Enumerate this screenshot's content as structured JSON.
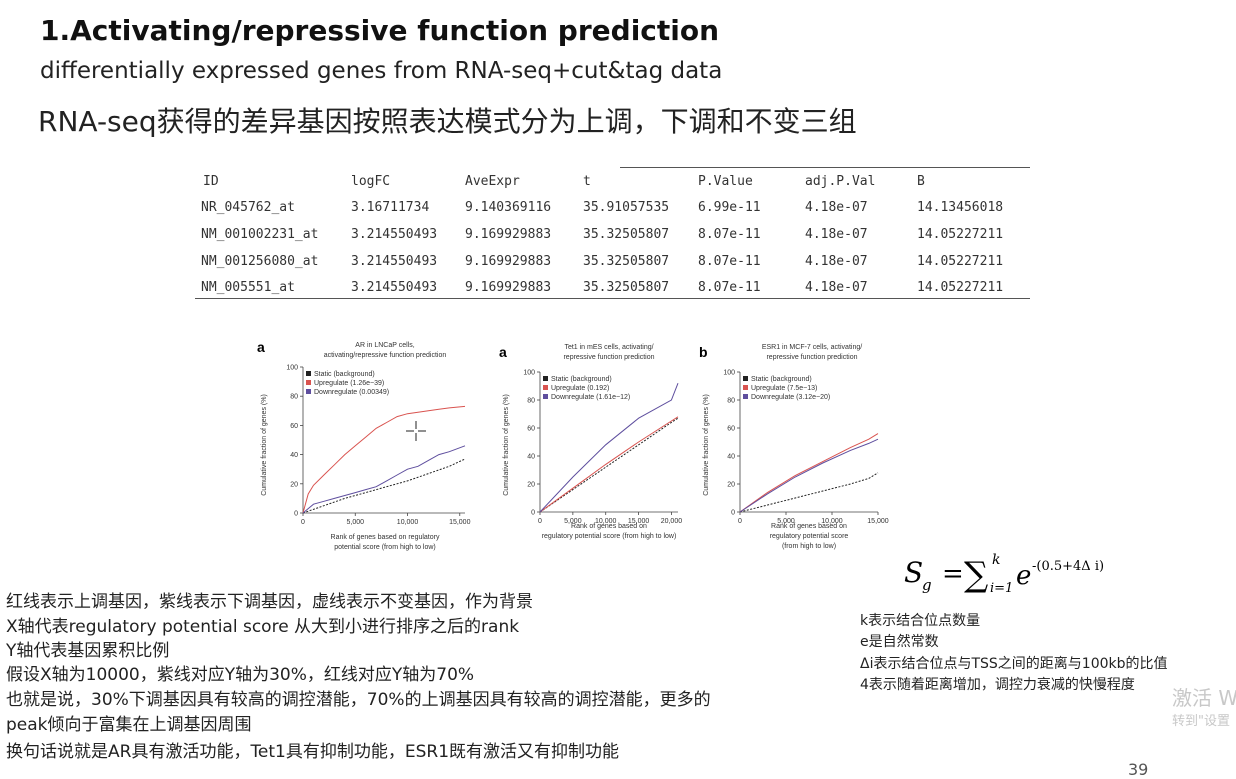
{
  "slide": {
    "title": "1.Activating/repressive function prediction",
    "subtitle": "differentially expressed genes from RNA-seq+cut&tag data",
    "subtitle_cn": "RNA-seq获得的差异基因按照表达模式分为上调，下调和不变三组",
    "page_number": "39"
  },
  "table": {
    "headers": [
      "ID",
      "logFC",
      "AveExpr",
      "t",
      "P.Value",
      "adj.P.Val",
      "B"
    ],
    "rows": [
      [
        "NR_045762_at",
        "3.16711734",
        "9.140369116",
        "35.91057535",
        "6.99e-11",
        "4.18e-07",
        "14.13456018"
      ],
      [
        "NM_001002231_at",
        "3.214550493",
        "9.169929883",
        "35.32505807",
        "8.07e-11",
        "4.18e-07",
        "14.05227211"
      ],
      [
        "NM_001256080_at",
        "3.214550493",
        "9.169929883",
        "35.32505807",
        "8.07e-11",
        "4.18e-07",
        "14.05227211"
      ],
      [
        "NM_005551_at",
        "3.214550493",
        "9.169929883",
        "35.32505807",
        "8.07e-11",
        "4.18e-07",
        "14.05227211"
      ]
    ]
  },
  "charts": [
    {
      "panel_letter": "a",
      "title_line1": "AR in LNCaP cells,",
      "title_line2": "activating/repressive function prediction",
      "ylabel": "Cumulative fraction of genes (%)",
      "xlabel_line1": "Rank of genes based on regulatory",
      "xlabel_line2": "potential score (from high to low)",
      "yticks": [
        "0",
        "20",
        "40",
        "60",
        "80",
        "100"
      ],
      "xticks": [
        "0",
        "5,000",
        "10,000",
        "15,000"
      ],
      "legend": [
        "Static (background)",
        "Upregulate (1.26e−39)",
        "Downregulate (0.00349)"
      ]
    },
    {
      "panel_letter": "a",
      "title_line1": "Tet1 in mES cells, activating/",
      "title_line2": "repressive function prediction",
      "ylabel": "Cumulative fraction of genes (%)",
      "xlabel_line1": "Rank of genes based on",
      "xlabel_line2": "regulatory potential score (from high to low)",
      "yticks": [
        "0",
        "20",
        "40",
        "60",
        "80",
        "100"
      ],
      "xticks": [
        "0",
        "5,000",
        "10,000",
        "15,000",
        "20,000"
      ],
      "legend": [
        "Static (background)",
        "Upregulate (0.192)",
        "Downregulate (1.61e−12)"
      ]
    },
    {
      "panel_letter": "b",
      "title_line1": "ESR1 in MCF-7 cells, activating/",
      "title_line2": "repressive function prediction",
      "ylabel": "Cumulative fraction of genes (%)",
      "xlabel_line1": "Rank of genes based on",
      "xlabel_line2": "regulatory potential score",
      "xlabel_line3": "(from high to low)",
      "yticks": [
        "0",
        "20",
        "40",
        "60",
        "80",
        "100"
      ],
      "xticks": [
        "0",
        "5,000",
        "10,000",
        "15,000"
      ],
      "legend": [
        "Static (background)",
        "Upregulate (7.5e−13)",
        "Downregulate (3.12e−20)"
      ]
    }
  ],
  "chart_data": [
    {
      "type": "line",
      "title": "AR in LNCaP cells, activating/repressive function prediction",
      "xlabel": "Rank of genes based on regulatory potential score (from high to low)",
      "ylabel": "Cumulative fraction of genes (%)",
      "xlim": [
        0,
        15500
      ],
      "ylim": [
        0,
        100
      ],
      "legend_position": "top-left",
      "series": [
        {
          "name": "Static (background)",
          "color": "#222222",
          "dashed": true,
          "x": [
            0,
            2000,
            4000,
            6000,
            8000,
            10000,
            12000,
            14000,
            15500
          ],
          "y": [
            0,
            5,
            10,
            14,
            18,
            22,
            27,
            32,
            37
          ]
        },
        {
          "name": "Upregulate (1.26e−39)",
          "color": "#d9534f",
          "dashed": false,
          "x": [
            0,
            500,
            1000,
            2000,
            3000,
            4000,
            5000,
            6000,
            7000,
            8000,
            9000,
            10000,
            11000,
            12000,
            13000,
            14000,
            15500
          ],
          "y": [
            0,
            13,
            19,
            26,
            33,
            40,
            46,
            52,
            58,
            62,
            66,
            68,
            69,
            70,
            71,
            72,
            73
          ]
        },
        {
          "name": "Downregulate (0.00349)",
          "color": "#5e4e9e",
          "dashed": false,
          "x": [
            0,
            1000,
            2000,
            3000,
            4000,
            5000,
            6000,
            7000,
            8000,
            9000,
            10000,
            11000,
            12000,
            13000,
            14000,
            15500
          ],
          "y": [
            0,
            6,
            8,
            10,
            12,
            14,
            16,
            18,
            22,
            26,
            30,
            32,
            36,
            40,
            42,
            46
          ]
        }
      ]
    },
    {
      "type": "line",
      "title": "Tet1 in mES cells, activating/repressive function prediction",
      "xlabel": "Rank of genes based on regulatory potential score (from high to low)",
      "ylabel": "Cumulative fraction of genes (%)",
      "xlim": [
        0,
        21000
      ],
      "ylim": [
        0,
        100
      ],
      "legend_position": "top-left",
      "series": [
        {
          "name": "Static (background)",
          "color": "#222222",
          "dashed": true,
          "x": [
            0,
            5000,
            10000,
            15000,
            20000,
            21000
          ],
          "y": [
            0,
            16,
            32,
            48,
            64,
            67
          ]
        },
        {
          "name": "Upregulate (0.192)",
          "color": "#d9534f",
          "dashed": false,
          "x": [
            0,
            5000,
            10000,
            15000,
            20000,
            21000
          ],
          "y": [
            0,
            17,
            34,
            50,
            65,
            68
          ]
        },
        {
          "name": "Downregulate (1.61e−12)",
          "color": "#5e4e9e",
          "dashed": false,
          "x": [
            0,
            5000,
            10000,
            15000,
            20000,
            21000
          ],
          "y": [
            0,
            25,
            48,
            67,
            80,
            92
          ]
        }
      ]
    },
    {
      "type": "line",
      "title": "ESR1 in MCF-7 cells, activating/repressive function prediction",
      "xlabel": "Rank of genes based on regulatory potential score (from high to low)",
      "ylabel": "Cumulative fraction of genes (%)",
      "xlim": [
        0,
        15000
      ],
      "ylim": [
        0,
        100
      ],
      "legend_position": "top-left",
      "series": [
        {
          "name": "Static (background)",
          "color": "#222222",
          "dashed": true,
          "x": [
            0,
            3000,
            6000,
            9000,
            12000,
            14000,
            15000
          ],
          "y": [
            0,
            5,
            10,
            15,
            20,
            24,
            28
          ]
        },
        {
          "name": "Upregulate (7.5e−13)",
          "color": "#d9534f",
          "dashed": false,
          "x": [
            0,
            3000,
            6000,
            9000,
            12000,
            14000,
            15000
          ],
          "y": [
            0,
            14,
            26,
            36,
            46,
            52,
            56
          ]
        },
        {
          "name": "Downregulate (3.12e−20)",
          "color": "#5e4e9e",
          "dashed": false,
          "x": [
            0,
            3000,
            6000,
            9000,
            12000,
            14000,
            15000
          ],
          "y": [
            0,
            13,
            25,
            35,
            44,
            49,
            52
          ]
        }
      ]
    }
  ],
  "notes": [
    "红线表示上调基因，紫线表示下调基因，虚线表示不变基因，作为背景",
    "X轴代表regulatory potential score 从大到小进行排序之后的rank",
    "Y轴代表基因累积比例",
    "假设X轴为10000，紫线对应Y轴为30%，红线对应Y轴为70%",
    "也就是说，30%下调基因具有较高的调控潜能，70%的上调基因具有较高的调控潜能，更多的",
    "peak倾向于富集在上调基因周围",
    "换句话说就是AR具有激活功能，Tet1具有抑制功能，ESR1既有激活又有抑制功能"
  ],
  "formula": {
    "lhs": "S",
    "lhs_sub": "g",
    "eq": "=",
    "sum": "∑",
    "sum_sub": "i=1",
    "sum_sup": "k",
    "base": "e",
    "exponent": "-(0.5+4Δ i)"
  },
  "formula_notes": [
    "k表示结合位点数量",
    "e是自然常数",
    "Δi表示结合位点与TSS之间的距离与100kb的比值",
    "4表示随着距离增加，调控力衰减的快慢程度"
  ],
  "watermark": {
    "line1": "激活 W",
    "line2": "转到\"设置"
  },
  "colors": {
    "up": "#d9534f",
    "down": "#5e4e9e",
    "static": "#222222"
  }
}
